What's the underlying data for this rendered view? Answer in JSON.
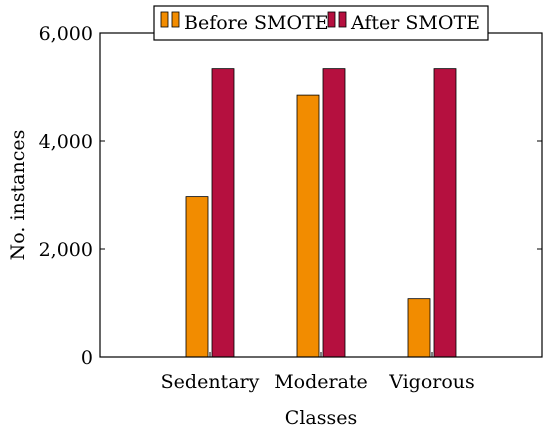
{
  "chart_data": {
    "type": "bar",
    "categories": [
      "Sedentary",
      "Moderate",
      "Vigorous"
    ],
    "series": [
      {
        "name": "Before SMOTE",
        "values": [
          2970,
          4850,
          1080
        ],
        "color": "#f28c00"
      },
      {
        "name": "After SMOTE",
        "values": [
          5340,
          5340,
          5340
        ],
        "color": "#b5103f"
      }
    ],
    "xlabel": "Classes",
    "ylabel": "No. instances",
    "ylim": [
      0,
      6000
    ],
    "yticks": [
      0,
      2000,
      4000,
      6000
    ],
    "ytick_labels": [
      "0",
      "2,000",
      "4,000",
      "6,000"
    ],
    "legend_position": "top-right",
    "grid": false
  }
}
